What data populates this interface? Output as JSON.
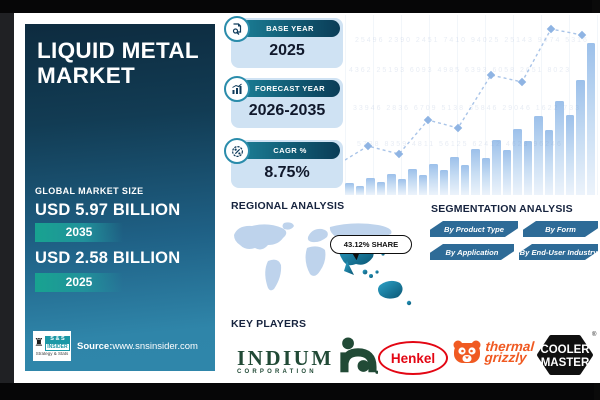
{
  "panel": {
    "title": "LIQUID METAL MARKET",
    "market_size_label": "GLOBAL MARKET SIZE",
    "value_high": "USD 5.97 BILLION",
    "year_high": "2035",
    "value_low": "USD 2.58 BILLION",
    "year_low": "2025",
    "source_label": "Source:",
    "source_url": "www.snsinsider.com",
    "logo": {
      "rook": "♜",
      "top": "S & S",
      "mid": "INSIDER",
      "bottom": "Strategy & Stats"
    }
  },
  "stats_cards": [
    {
      "label": "BASE YEAR",
      "value": "2025",
      "icon": "document-search-icon"
    },
    {
      "label": "FORECAST YEAR",
      "value": "2026-2035",
      "icon": "bar-chart-arrow-icon"
    },
    {
      "label": "CAGR %",
      "value": "8.75%",
      "icon": "percent-circle-icon"
    }
  ],
  "regional": {
    "title": "REGIONAL ANALYSIS",
    "share_callout": "43.12% SHARE"
  },
  "segmentation": {
    "title": "SEGMENTATION ANALYSIS",
    "buttons": [
      "By Product Type",
      "By Form",
      "By Application",
      "By End-User Industry"
    ]
  },
  "key_players": {
    "title": "KEY PLAYERS",
    "indium": {
      "name": "INDIUM",
      "sub": "CORPORATION",
      "reg": "®"
    },
    "henkel": {
      "name": "Henkel"
    },
    "thermal": {
      "line1": "thermal",
      "line2": "grizzly"
    },
    "cooler": {
      "line1": "COOLER",
      "line2": "MASTER",
      "reg": "®"
    }
  },
  "chart_decoration": {
    "type": "decorative-growth-bars",
    "bar_heights": [
      12,
      9,
      17,
      13,
      21,
      16,
      26,
      20,
      31,
      25,
      38,
      30,
      46,
      37,
      55,
      45,
      66,
      54,
      79,
      65,
      94,
      80,
      115,
      152
    ],
    "line_points": [
      [
        0,
        145
      ],
      [
        23,
        131
      ],
      [
        54,
        139
      ],
      [
        83,
        105
      ],
      [
        113,
        113
      ],
      [
        146,
        60
      ],
      [
        177,
        67
      ],
      [
        206,
        14
      ],
      [
        237,
        20
      ]
    ],
    "noise_rows": [
      "25496 2390 2451 7410 94025 25143 9674 5316",
      "4362 25193 6093 4985 6393 6058 2651 8023",
      "33946 2836 6709 5138 35846 29046 1622 733",
      "5738 8359 4811 56125 62412 4623 96246"
    ]
  },
  "colors": {
    "accent_teal": "#18a390",
    "panel_blue": "#2f85a9",
    "header_navy": "#0a3c57",
    "card_bg": "#cfe2f3",
    "ribbon_blue": "#2e6b97",
    "map_light": "#bed3ec",
    "map_highlight": "#0d6384",
    "indium_green": "#214a36",
    "henkel_red": "#e30613",
    "thermal_orange": "#f05a22"
  }
}
